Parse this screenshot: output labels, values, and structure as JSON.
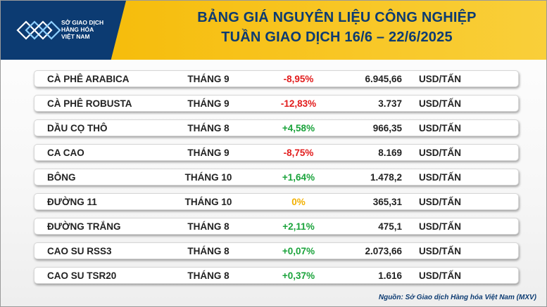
{
  "header": {
    "logo_lines": [
      "SỞ GIAO DỊCH",
      "HÀNG HÓA",
      "VIỆT NAM"
    ],
    "title_line1": "BẢNG GIÁ NGUYÊN LIỆU CÔNG NGHIỆP",
    "title_line2": "TUẦN GIAO DỊCH 16/6 – 22/6/2025"
  },
  "colors": {
    "banner": "#f7c21a",
    "title": "#0c3b72",
    "negative": "#e21b1b",
    "positive": "#1aa33b",
    "neutral": "#f2b000"
  },
  "rows": [
    {
      "name": "CÀ PHÊ ARABICA",
      "month": "THÁNG 9",
      "change": "-8,95%",
      "trend": "neg",
      "price": "6.945,66",
      "unit": "USD/TẤN"
    },
    {
      "name": "CÀ PHÊ ROBUSTA",
      "month": "THÁNG 9",
      "change": "-12,83%",
      "trend": "neg",
      "price": "3.737",
      "unit": "USD/TẤN"
    },
    {
      "name": "DẦU CỌ THÔ",
      "month": "THÁNG 8",
      "change": "+4,58%",
      "trend": "pos",
      "price": "966,35",
      "unit": "USD/TẤN"
    },
    {
      "name": "CA CAO",
      "month": "THÁNG 9",
      "change": "-8,75%",
      "trend": "neg",
      "price": "8.169",
      "unit": "USD/TẤN"
    },
    {
      "name": "BÔNG",
      "month": "THÁNG 10",
      "change": "+1,64%",
      "trend": "pos",
      "price": "1.478,2",
      "unit": "USD/TẤN"
    },
    {
      "name": "ĐƯỜNG 11",
      "month": "THÁNG 10",
      "change": "0%",
      "trend": "zero",
      "price": "365,31",
      "unit": "USD/TẤN"
    },
    {
      "name": "ĐƯỜNG TRẮNG",
      "month": "THÁNG 8",
      "change": "+2,11%",
      "trend": "pos",
      "price": "475,1",
      "unit": "USD/TẤN"
    },
    {
      "name": "CAO SU RSS3",
      "month": "THÁNG 8",
      "change": "+0,07%",
      "trend": "pos",
      "price": "2.073,66",
      "unit": "USD/TẤN"
    },
    {
      "name": "CAO SU TSR20",
      "month": "THÁNG 8",
      "change": "+0,37%",
      "trend": "pos",
      "price": "1.616",
      "unit": "USD/TẤN"
    }
  ],
  "footer": {
    "source": "Nguồn: Sở Giao dịch Hàng hóa Việt Nam (MXV)"
  }
}
